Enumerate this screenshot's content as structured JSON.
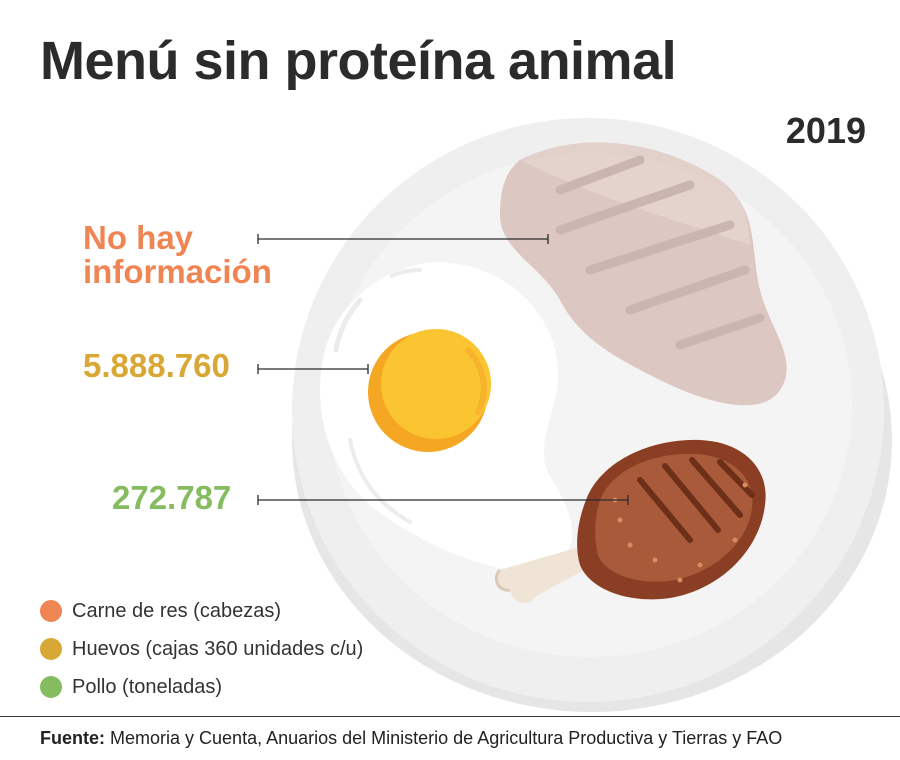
{
  "header": {
    "title": "Menú sin proteína animal",
    "year": "2019"
  },
  "callouts": {
    "beef": "No hay información",
    "eggs": "5.888.760",
    "chicken": "272.787"
  },
  "legend": [
    {
      "label": "Carne de res (cabezas)",
      "color": "#f08554"
    },
    {
      "label": "Huevos (cajas 360 unidades c/u)",
      "color": "#d9a733"
    },
    {
      "label": "Pollo (toneladas)",
      "color": "#86bc60"
    }
  ],
  "footer": {
    "source_label": "Fuente:",
    "source_text": "Memoria y Cuenta, Anuarios del Ministerio de Agricultura Productiva y Tierras y FAO"
  }
}
